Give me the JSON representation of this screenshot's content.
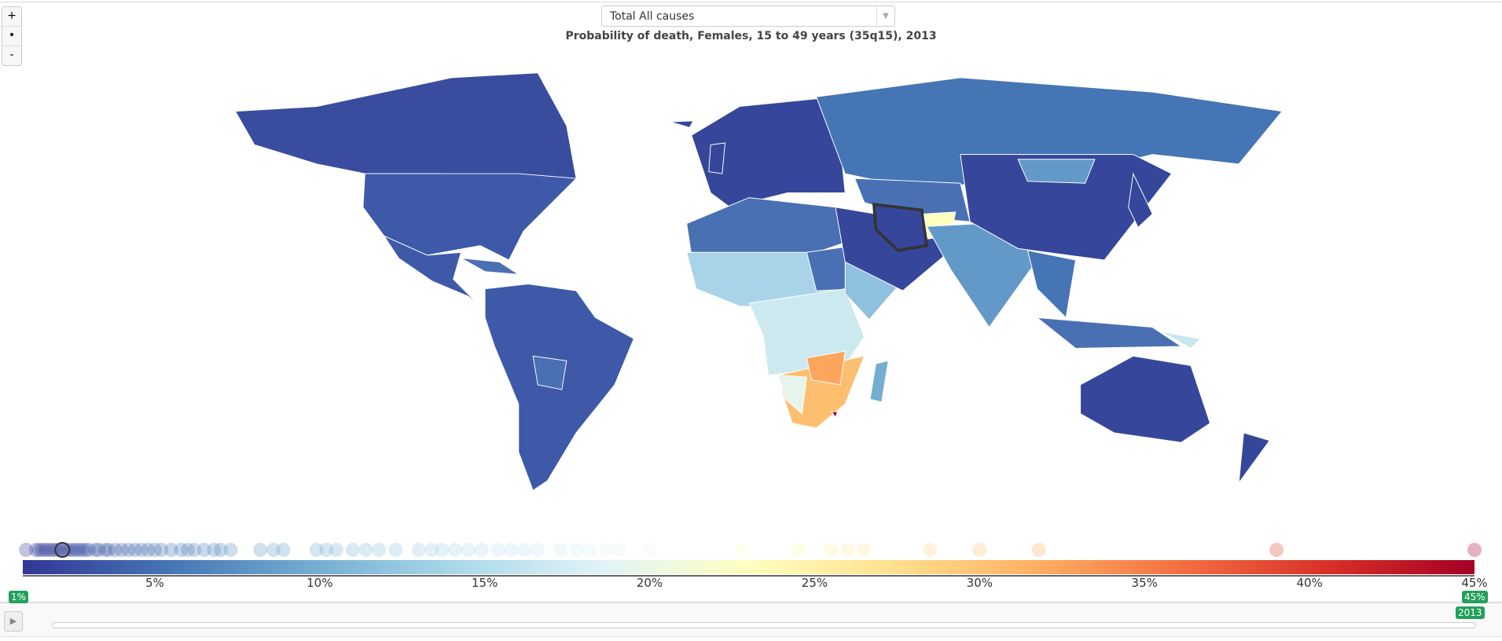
{
  "controls": {
    "zoom_in": "+",
    "zoom_reset": "•",
    "zoom_out": "-"
  },
  "cause_select": {
    "value": "Total All causes"
  },
  "chart_data": {
    "type": "choropleth",
    "title": "Probability of death, Females, 15 to 49 years (35q15), 2013",
    "color_scale": {
      "min": 1,
      "max": 45,
      "unit": "%",
      "colors": [
        "#313695",
        "#4575b4",
        "#74add1",
        "#abd9e9",
        "#e0f3f8",
        "#ffffbf",
        "#fee090",
        "#fdae61",
        "#f46d43",
        "#d73027",
        "#a50026"
      ]
    },
    "tick_labels": [
      "5%",
      "10%",
      "15%",
      "20%",
      "25%",
      "30%",
      "35%",
      "40%",
      "45%"
    ],
    "range_min_label": "1%",
    "range_max_label": "45%",
    "country_values": [
      1.1,
      1.4,
      1.5,
      1.6,
      1.7,
      1.8,
      1.9,
      2.0,
      2.1,
      2.2,
      2.3,
      2.4,
      2.5,
      2.6,
      2.7,
      2.8,
      2.9,
      3.0,
      3.2,
      3.3,
      3.5,
      3.6,
      3.8,
      4.0,
      4.2,
      4.4,
      4.6,
      4.8,
      5.0,
      5.2,
      5.5,
      5.8,
      6.0,
      6.2,
      6.5,
      6.8,
      7.0,
      7.3,
      8.2,
      8.6,
      8.9,
      9.9,
      10.2,
      10.5,
      11.0,
      11.4,
      11.8,
      12.3,
      13.0,
      13.4,
      13.7,
      14.1,
      14.5,
      14.9,
      15.4,
      15.8,
      16.2,
      16.6,
      17.3,
      17.8,
      18.2,
      18.7,
      19.1,
      20.0,
      22.8,
      24.5,
      25.5,
      26.0,
      26.5,
      28.5,
      30.0,
      31.8,
      39.0,
      45.0
    ],
    "highlighted_value": 2.2
  },
  "timeline": {
    "year": "2013"
  }
}
